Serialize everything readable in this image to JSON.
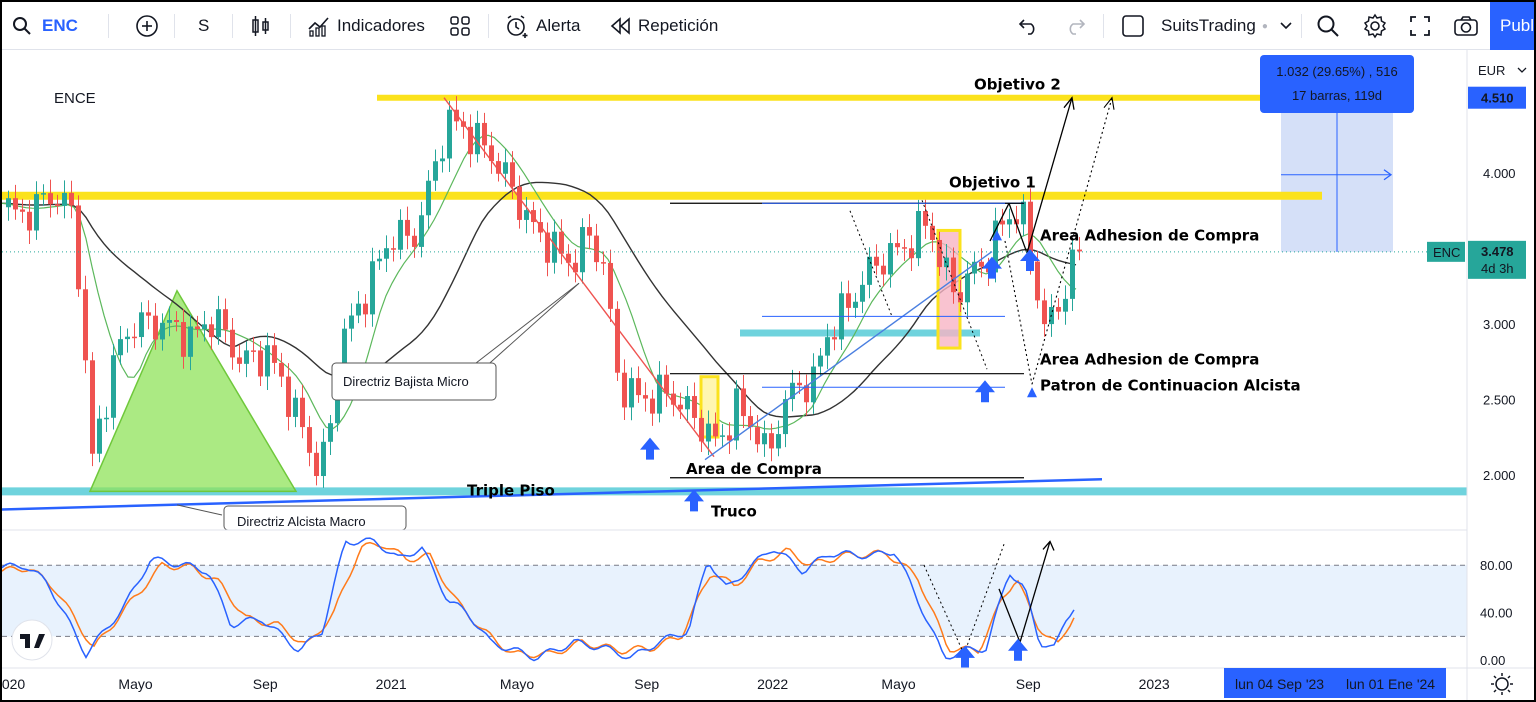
{
  "toolbar": {
    "symbol": "ENC",
    "interval": "S",
    "indicators_label": "Indicadores",
    "alert_label": "Alerta",
    "replay_label": "Repetición",
    "layout_name": "SuitsTrading",
    "publish_label": "Publicar"
  },
  "colors": {
    "up": "#26a69a",
    "down": "#ef5350",
    "yellow_line": "#fbe21c",
    "cyan_line": "#6fd3dd",
    "ma_black": "#333333",
    "ma_green": "#5cb85c",
    "stoch_k": "#2962ff",
    "stoch_d": "#ff7b1b",
    "accent": "#2962ff"
  },
  "chart_data": [
    {
      "type": "candlestick",
      "title": "ENCE",
      "currency": "EUR",
      "y_ticks": [
        "4.000",
        "3.500",
        "3.000",
        "2.500",
        "2.000"
      ],
      "ylim": [
        1.7,
        4.75
      ],
      "x_tick_labels": [
        "2020",
        "Mayo",
        "Sep",
        "2021",
        "Mayo",
        "Sep",
        "2022",
        "Mayo",
        "Sep",
        "2023",
        "Mayo"
      ],
      "x_ticks": [
        2020.0,
        2020.33,
        2020.67,
        2021.0,
        2021.33,
        2021.67,
        2022.0,
        2022.33,
        2022.67,
        2023.0,
        2023.33
      ],
      "xlim": [
        2019.98,
        2023.82
      ],
      "price_badges": {
        "target": "4.510",
        "last": "3.478",
        "symbol": "ENC",
        "countdown": "4d 3h"
      },
      "measure_tooltip": {
        "line1": "1.032 (29.65%) , 516",
        "line2": "17 barras, 119d"
      },
      "annotations": {
        "objetivo_2": "Objetivo 2",
        "objetivo_1": "Objetivo 1",
        "area_adhesion_1": "Area Adhesion de Compra",
        "area_adhesion_2": "Area Adhesion de Compra",
        "patron": "Patron de Continuacion Alcista",
        "area_compra": "Area de Compra",
        "triple_piso": "Triple Piso",
        "truco": "Truco",
        "directriz_bajista": "Directriz Bajista Micro",
        "directriz_alcista": "Directriz Alcista Macro"
      },
      "levels": {
        "objetivo_2": 4.5,
        "resistance": 3.85,
        "triple_piso": 1.89,
        "support_cyan": 2.94
      },
      "waypoints": [
        [
          2019.98,
          3.8
        ],
        [
          2020.02,
          3.7
        ],
        [
          2020.1,
          3.85
        ],
        [
          2020.15,
          3.8
        ],
        [
          2020.17,
          3.5
        ],
        [
          2020.21,
          2.1
        ],
        [
          2020.24,
          2.45
        ],
        [
          2020.28,
          2.85
        ],
        [
          2020.32,
          3.0
        ],
        [
          2020.4,
          3.0
        ],
        [
          2020.47,
          2.9
        ],
        [
          2020.53,
          3.05
        ],
        [
          2020.6,
          2.75
        ],
        [
          2020.67,
          2.8
        ],
        [
          2020.72,
          2.55
        ],
        [
          2020.8,
          2.05
        ],
        [
          2020.83,
          2.2
        ],
        [
          2020.86,
          2.9
        ],
        [
          2020.9,
          3.05
        ],
        [
          2020.95,
          3.35
        ],
        [
          2021.0,
          3.6
        ],
        [
          2021.05,
          3.55
        ],
        [
          2021.1,
          3.95
        ],
        [
          2021.14,
          4.35
        ],
        [
          2021.18,
          4.3
        ],
        [
          2021.25,
          4.15
        ],
        [
          2021.3,
          3.95
        ],
        [
          2021.36,
          3.65
        ],
        [
          2021.42,
          3.5
        ],
        [
          2021.47,
          3.4
        ],
        [
          2021.51,
          3.6
        ],
        [
          2021.55,
          3.4
        ],
        [
          2021.59,
          2.6
        ],
        [
          2021.65,
          2.5
        ],
        [
          2021.72,
          2.55
        ],
        [
          2021.8,
          2.35
        ],
        [
          2021.85,
          2.2
        ],
        [
          2021.9,
          2.45
        ],
        [
          2021.95,
          2.3
        ],
        [
          2021.98,
          2.1
        ],
        [
          2022.02,
          2.45
        ],
        [
          2022.06,
          2.6
        ],
        [
          2022.1,
          2.6
        ],
        [
          2022.13,
          2.9
        ],
        [
          2022.17,
          3.05
        ],
        [
          2022.21,
          3.2
        ],
        [
          2022.26,
          3.4
        ],
        [
          2022.3,
          3.45
        ],
        [
          2022.36,
          3.55
        ],
        [
          2022.4,
          3.7
        ],
        [
          2022.44,
          3.35
        ],
        [
          2022.48,
          3.2
        ],
        [
          2022.52,
          3.35
        ],
        [
          2022.56,
          3.45
        ],
        [
          2022.6,
          3.7
        ],
        [
          2022.64,
          3.75
        ],
        [
          2022.66,
          3.6
        ],
        [
          2022.68,
          3.3
        ],
        [
          2022.71,
          2.95
        ],
        [
          2022.74,
          3.1
        ],
        [
          2022.76,
          3.25
        ],
        [
          2022.78,
          3.4
        ],
        [
          2022.8,
          3.48
        ]
      ],
      "indicator": {
        "name": "Stochastic",
        "y_ticks": [
          "80.00",
          "40.00",
          "0.00"
        ],
        "ylim": [
          -5,
          108
        ],
        "upper_band": 80,
        "lower_band": 20,
        "k_waypoints": [
          [
            2019.98,
            78
          ],
          [
            2020.04,
            80
          ],
          [
            2020.1,
            65
          ],
          [
            2020.2,
            5
          ],
          [
            2020.3,
            45
          ],
          [
            2020.37,
            85
          ],
          [
            2020.46,
            80
          ],
          [
            2020.52,
            75
          ],
          [
            2020.58,
            30
          ],
          [
            2020.66,
            35
          ],
          [
            2020.76,
            8
          ],
          [
            2020.82,
            25
          ],
          [
            2020.88,
            100
          ],
          [
            2020.96,
            100
          ],
          [
            2021.02,
            85
          ],
          [
            2021.08,
            95
          ],
          [
            2021.15,
            50
          ],
          [
            2021.2,
            40
          ],
          [
            2021.26,
            15
          ],
          [
            2021.38,
            2
          ],
          [
            2021.48,
            15
          ],
          [
            2021.56,
            10
          ],
          [
            2021.63,
            2
          ],
          [
            2021.7,
            15
          ],
          [
            2021.78,
            25
          ],
          [
            2021.83,
            85
          ],
          [
            2021.88,
            60
          ],
          [
            2021.93,
            75
          ],
          [
            2022.0,
            95
          ],
          [
            2022.08,
            75
          ],
          [
            2022.15,
            90
          ],
          [
            2022.26,
            88
          ],
          [
            2022.32,
            92
          ],
          [
            2022.36,
            65
          ],
          [
            2022.45,
            2
          ],
          [
            2022.5,
            8
          ],
          [
            2022.56,
            10
          ],
          [
            2022.62,
            75
          ],
          [
            2022.66,
            60
          ],
          [
            2022.7,
            15
          ],
          [
            2022.74,
            10
          ],
          [
            2022.77,
            35
          ],
          [
            2022.8,
            50
          ]
        ],
        "d_waypoints": [
          [
            2019.98,
            75
          ],
          [
            2020.05,
            78
          ],
          [
            2020.12,
            60
          ],
          [
            2020.22,
            10
          ],
          [
            2020.32,
            50
          ],
          [
            2020.4,
            80
          ],
          [
            2020.48,
            78
          ],
          [
            2020.55,
            65
          ],
          [
            2020.62,
            35
          ],
          [
            2020.7,
            30
          ],
          [
            2020.78,
            12
          ],
          [
            2020.85,
            40
          ],
          [
            2020.92,
            95
          ],
          [
            2020.98,
            98
          ],
          [
            2021.04,
            85
          ],
          [
            2021.1,
            88
          ],
          [
            2021.17,
            50
          ],
          [
            2021.24,
            25
          ],
          [
            2021.32,
            5
          ],
          [
            2021.42,
            5
          ],
          [
            2021.5,
            15
          ],
          [
            2021.6,
            8
          ],
          [
            2021.68,
            10
          ],
          [
            2021.76,
            20
          ],
          [
            2021.84,
            75
          ],
          [
            2021.9,
            62
          ],
          [
            2021.96,
            82
          ],
          [
            2022.04,
            92
          ],
          [
            2022.1,
            80
          ],
          [
            2022.18,
            88
          ],
          [
            2022.3,
            90
          ],
          [
            2022.38,
            70
          ],
          [
            2022.46,
            10
          ],
          [
            2022.54,
            8
          ],
          [
            2022.6,
            50
          ],
          [
            2022.64,
            70
          ],
          [
            2022.69,
            30
          ],
          [
            2022.75,
            12
          ],
          [
            2022.8,
            45
          ]
        ]
      }
    }
  ],
  "time_axis": {
    "highlight_1": "lun 04 Sep '23",
    "highlight_2": "lun 01 Ene '24"
  }
}
